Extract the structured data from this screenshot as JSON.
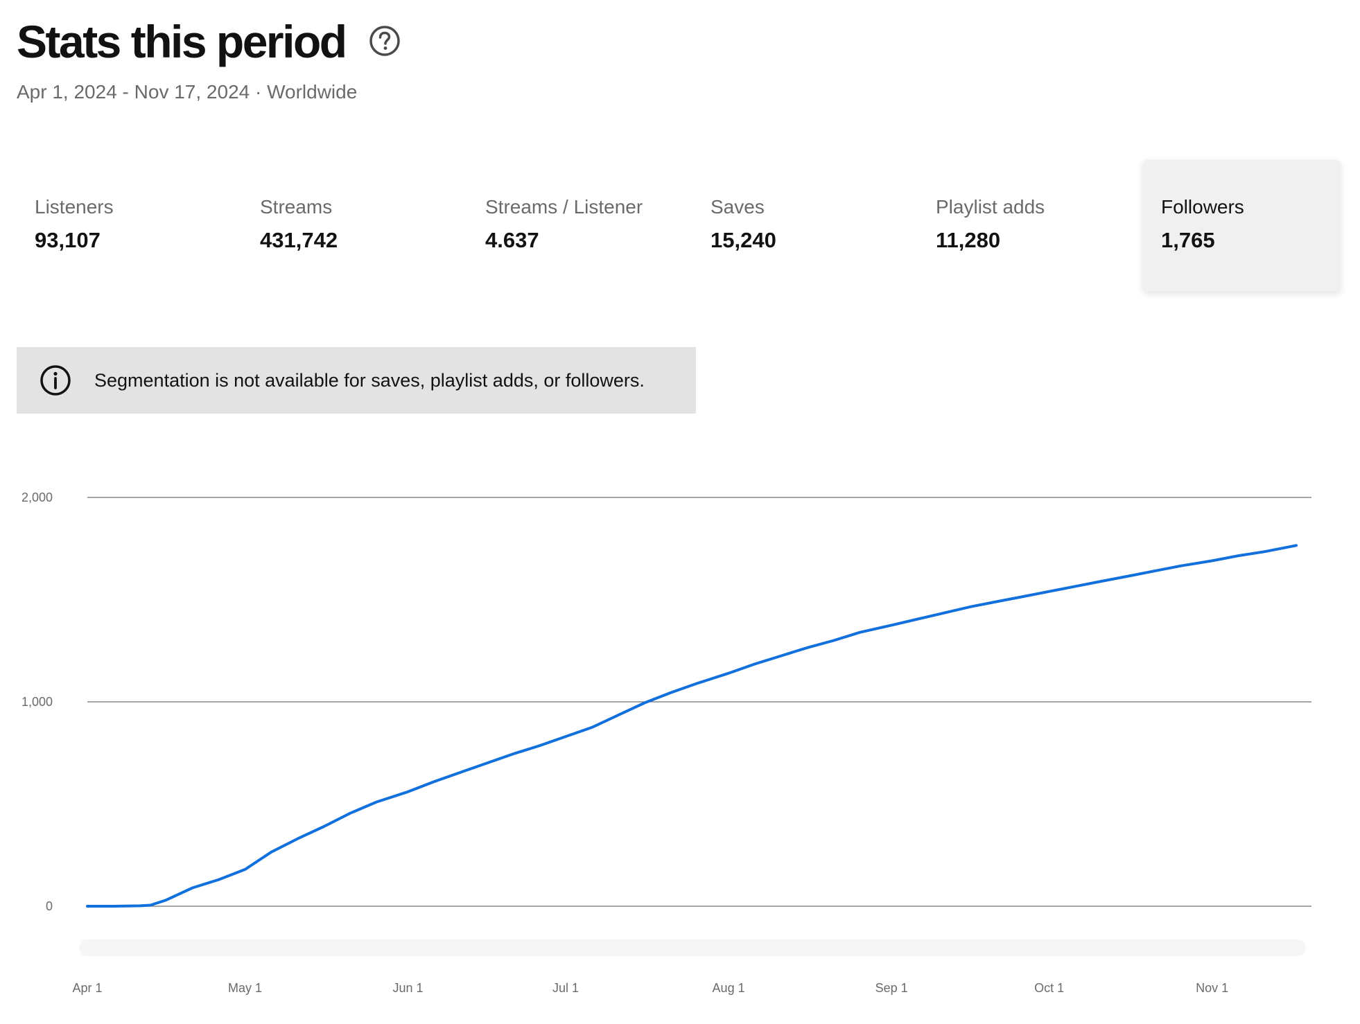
{
  "header": {
    "title": "Stats this period",
    "subtitle": "Apr 1, 2024 - Nov 17, 2024 · Worldwide"
  },
  "metrics": [
    {
      "label": "Listeners",
      "value": "93,107",
      "selected": false
    },
    {
      "label": "Streams",
      "value": "431,742",
      "selected": false
    },
    {
      "label": "Streams / Listener",
      "value": "4.637",
      "selected": false
    },
    {
      "label": "Saves",
      "value": "15,240",
      "selected": false
    },
    {
      "label": "Playlist adds",
      "value": "11,280",
      "selected": false
    },
    {
      "label": "Followers",
      "value": "1,765",
      "selected": true
    }
  ],
  "banner": {
    "text": "Segmentation is not available for saves, playlist adds, or followers."
  },
  "colors": {
    "line": "#1170dc",
    "grid": "#6f6f6f",
    "axis_text": "#6a6a6a",
    "banner_bg": "#e3e3e3",
    "selected_bg": "#f0f0f0"
  },
  "chart_data": {
    "type": "line",
    "x_range": [
      "2024-04-01",
      "2024-11-17"
    ],
    "y_range": [
      0,
      2000
    ],
    "y_ticks": [
      {
        "value": 0,
        "label": "0"
      },
      {
        "value": 1000,
        "label": "1,000"
      },
      {
        "value": 2000,
        "label": "2,000"
      }
    ],
    "x_ticks": [
      {
        "date": "2024-04-01",
        "label": "Apr 1"
      },
      {
        "date": "2024-05-01",
        "label": "May 1"
      },
      {
        "date": "2024-06-01",
        "label": "Jun 1"
      },
      {
        "date": "2024-07-01",
        "label": "Jul 1"
      },
      {
        "date": "2024-08-01",
        "label": "Aug 1"
      },
      {
        "date": "2024-09-01",
        "label": "Sep 1"
      },
      {
        "date": "2024-10-01",
        "label": "Oct 1"
      },
      {
        "date": "2024-11-01",
        "label": "Nov 1"
      }
    ],
    "grid": true,
    "series": [
      {
        "points": [
          [
            "2024-04-01",
            0
          ],
          [
            "2024-04-06",
            0
          ],
          [
            "2024-04-11",
            2
          ],
          [
            "2024-04-13",
            5
          ],
          [
            "2024-04-16",
            30
          ],
          [
            "2024-04-21",
            90
          ],
          [
            "2024-04-26",
            130
          ],
          [
            "2024-05-01",
            180
          ],
          [
            "2024-05-06",
            265
          ],
          [
            "2024-05-11",
            330
          ],
          [
            "2024-05-16",
            390
          ],
          [
            "2024-05-21",
            455
          ],
          [
            "2024-05-26",
            510
          ],
          [
            "2024-06-01",
            560
          ],
          [
            "2024-06-06",
            610
          ],
          [
            "2024-06-11",
            655
          ],
          [
            "2024-06-16",
            700
          ],
          [
            "2024-06-21",
            745
          ],
          [
            "2024-06-26",
            785
          ],
          [
            "2024-07-01",
            830
          ],
          [
            "2024-07-06",
            875
          ],
          [
            "2024-07-11",
            935
          ],
          [
            "2024-07-16",
            995
          ],
          [
            "2024-07-21",
            1045
          ],
          [
            "2024-07-26",
            1090
          ],
          [
            "2024-08-01",
            1140
          ],
          [
            "2024-08-06",
            1185
          ],
          [
            "2024-08-11",
            1225
          ],
          [
            "2024-08-16",
            1265
          ],
          [
            "2024-08-21",
            1300
          ],
          [
            "2024-08-26",
            1340
          ],
          [
            "2024-09-01",
            1375
          ],
          [
            "2024-09-06",
            1405
          ],
          [
            "2024-09-11",
            1435
          ],
          [
            "2024-09-16",
            1465
          ],
          [
            "2024-09-21",
            1490
          ],
          [
            "2024-09-26",
            1515
          ],
          [
            "2024-10-01",
            1540
          ],
          [
            "2024-10-06",
            1565
          ],
          [
            "2024-10-11",
            1590
          ],
          [
            "2024-10-16",
            1615
          ],
          [
            "2024-10-21",
            1640
          ],
          [
            "2024-10-26",
            1665
          ],
          [
            "2024-11-01",
            1690
          ],
          [
            "2024-11-06",
            1715
          ],
          [
            "2024-11-11",
            1735
          ],
          [
            "2024-11-17",
            1765
          ]
        ]
      }
    ]
  }
}
